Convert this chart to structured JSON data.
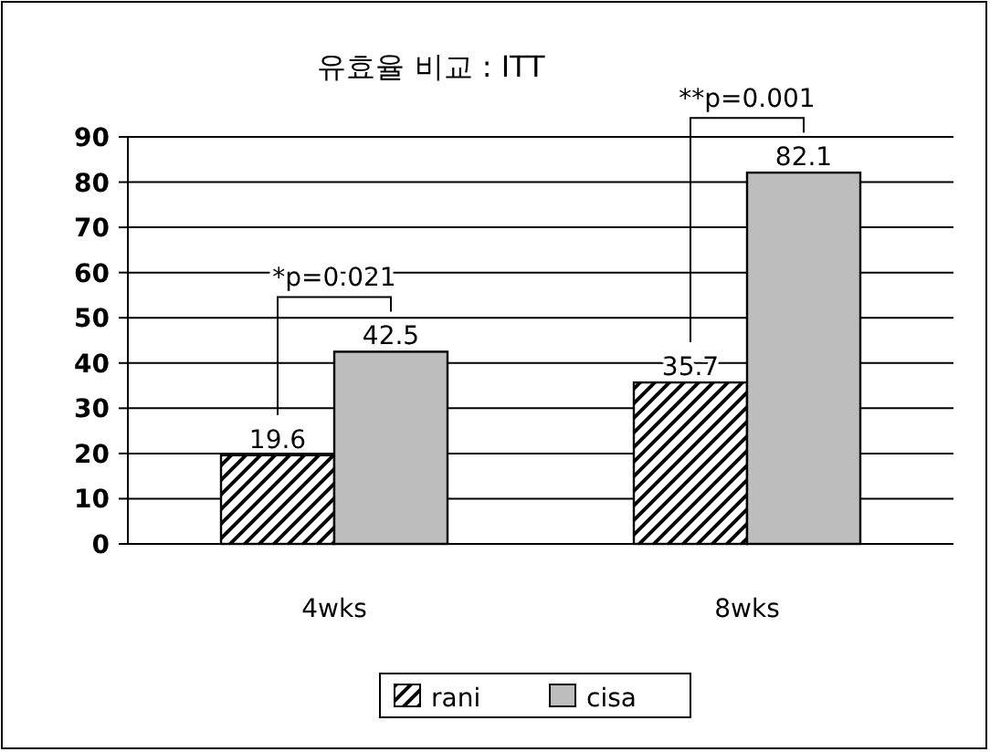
{
  "chart_data": {
    "type": "bar",
    "title": "유효율 비교 : ITT",
    "categories": [
      "4wks",
      "8wks"
    ],
    "series": [
      {
        "name": "rani",
        "color": "#000000",
        "values": [
          19.6,
          35.7
        ]
      },
      {
        "name": "cisa",
        "color": "#bdbdbd",
        "values": [
          42.5,
          82.1
        ]
      }
    ],
    "ylim": [
      0,
      90
    ],
    "yticks": [
      0,
      10,
      20,
      30,
      40,
      50,
      60,
      70,
      80,
      90
    ],
    "grid": "y",
    "legend": "bottom",
    "data_labels": true,
    "annotations": [
      "*p=0.021",
      "**p=0.001"
    ]
  }
}
